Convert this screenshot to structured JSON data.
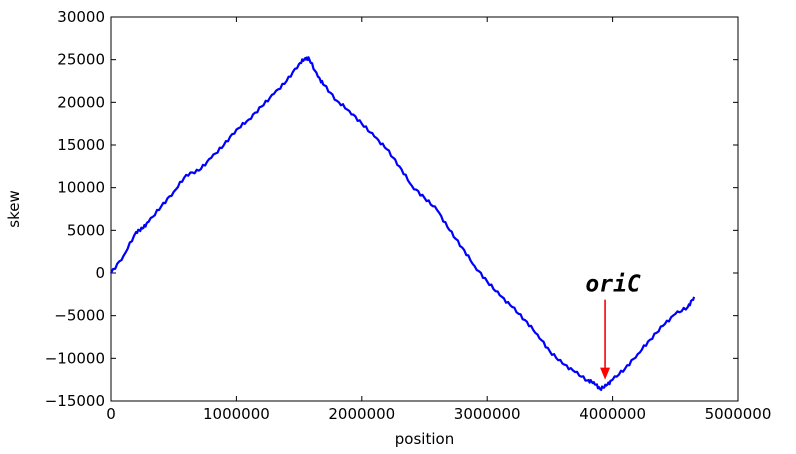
{
  "chart_data": {
    "type": "line",
    "title": "",
    "xlabel": "position",
    "ylabel": "skew",
    "xlim": [
      0,
      5000000
    ],
    "ylim": [
      -15000,
      30000
    ],
    "grid": false,
    "xticks": [
      0,
      1000000,
      2000000,
      3000000,
      4000000,
      5000000
    ],
    "xtick_labels": [
      "0",
      "1000000",
      "2000000",
      "3000000",
      "4000000",
      "5000000"
    ],
    "yticks": [
      -15000,
      -10000,
      -5000,
      0,
      5000,
      10000,
      15000,
      20000,
      25000,
      30000
    ],
    "ytick_labels": [
      "−15000",
      "−10000",
      "−5000",
      "0",
      "5000",
      "10000",
      "15000",
      "20000",
      "25000",
      "30000"
    ],
    "series": [
      {
        "color": "#0000ff",
        "x": [
          0,
          100000,
          200000,
          250000,
          300000,
          400000,
          500000,
          600000,
          700000,
          800000,
          900000,
          1000000,
          1100000,
          1200000,
          1300000,
          1400000,
          1500000,
          1550000,
          1580000,
          1650000,
          1700000,
          1800000,
          1900000,
          2000000,
          2100000,
          2200000,
          2300000,
          2400000,
          2500000,
          2600000,
          2700000,
          2800000,
          2900000,
          3000000,
          3100000,
          3200000,
          3300000,
          3400000,
          3500000,
          3600000,
          3700000,
          3800000,
          3850000,
          3900000,
          3950000,
          4000000,
          4100000,
          4200000,
          4300000,
          4400000,
          4500000,
          4600000,
          4650000
        ],
        "y": [
          0,
          2000,
          4800,
          5200,
          6000,
          7800,
          9500,
          11500,
          12000,
          13500,
          15000,
          16800,
          18000,
          19500,
          21000,
          22500,
          24500,
          25200,
          25100,
          23000,
          22000,
          20200,
          19000,
          17500,
          16000,
          14500,
          12500,
          10200,
          8800,
          7400,
          5000,
          3000,
          800,
          -1000,
          -2600,
          -4000,
          -5500,
          -7200,
          -9200,
          -10600,
          -11600,
          -12600,
          -12800,
          -13600,
          -13200,
          -12500,
          -11200,
          -9500,
          -7800,
          -6200,
          -4800,
          -4000,
          -2800
        ]
      }
    ],
    "annotations": [
      {
        "text": "oriC",
        "x": 3940000,
        "y": -12500,
        "color": "#ff0000"
      }
    ]
  }
}
